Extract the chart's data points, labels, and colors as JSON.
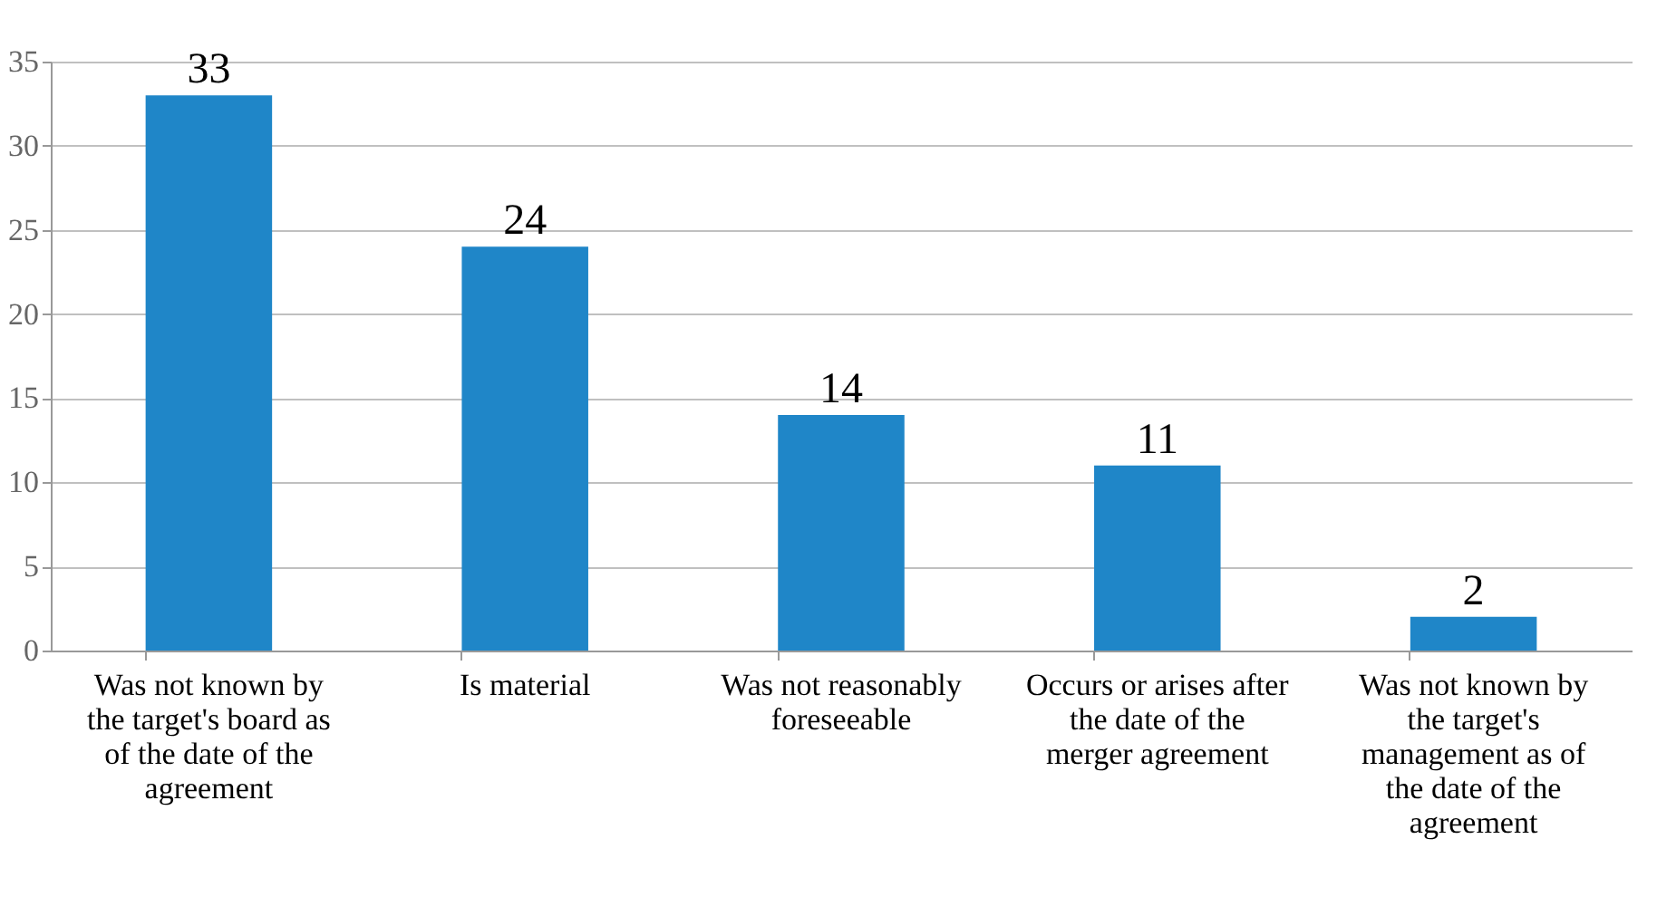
{
  "chart_data": {
    "type": "bar",
    "categories": [
      "Was not known by the target's board as of the date of the agreement",
      "Is material",
      "Was not reasonably foreseeable",
      "Occurs or arises after the date of the merger agreement",
      "Was not known by the target's management as of the date of the agreement"
    ],
    "values": [
      33,
      24,
      14,
      11,
      2
    ],
    "color": "#1f86c8",
    "ylim": [
      0,
      35
    ],
    "yticks": [
      0,
      5,
      10,
      15,
      20,
      25,
      30,
      35
    ],
    "grid": "y",
    "data_labels": true
  }
}
